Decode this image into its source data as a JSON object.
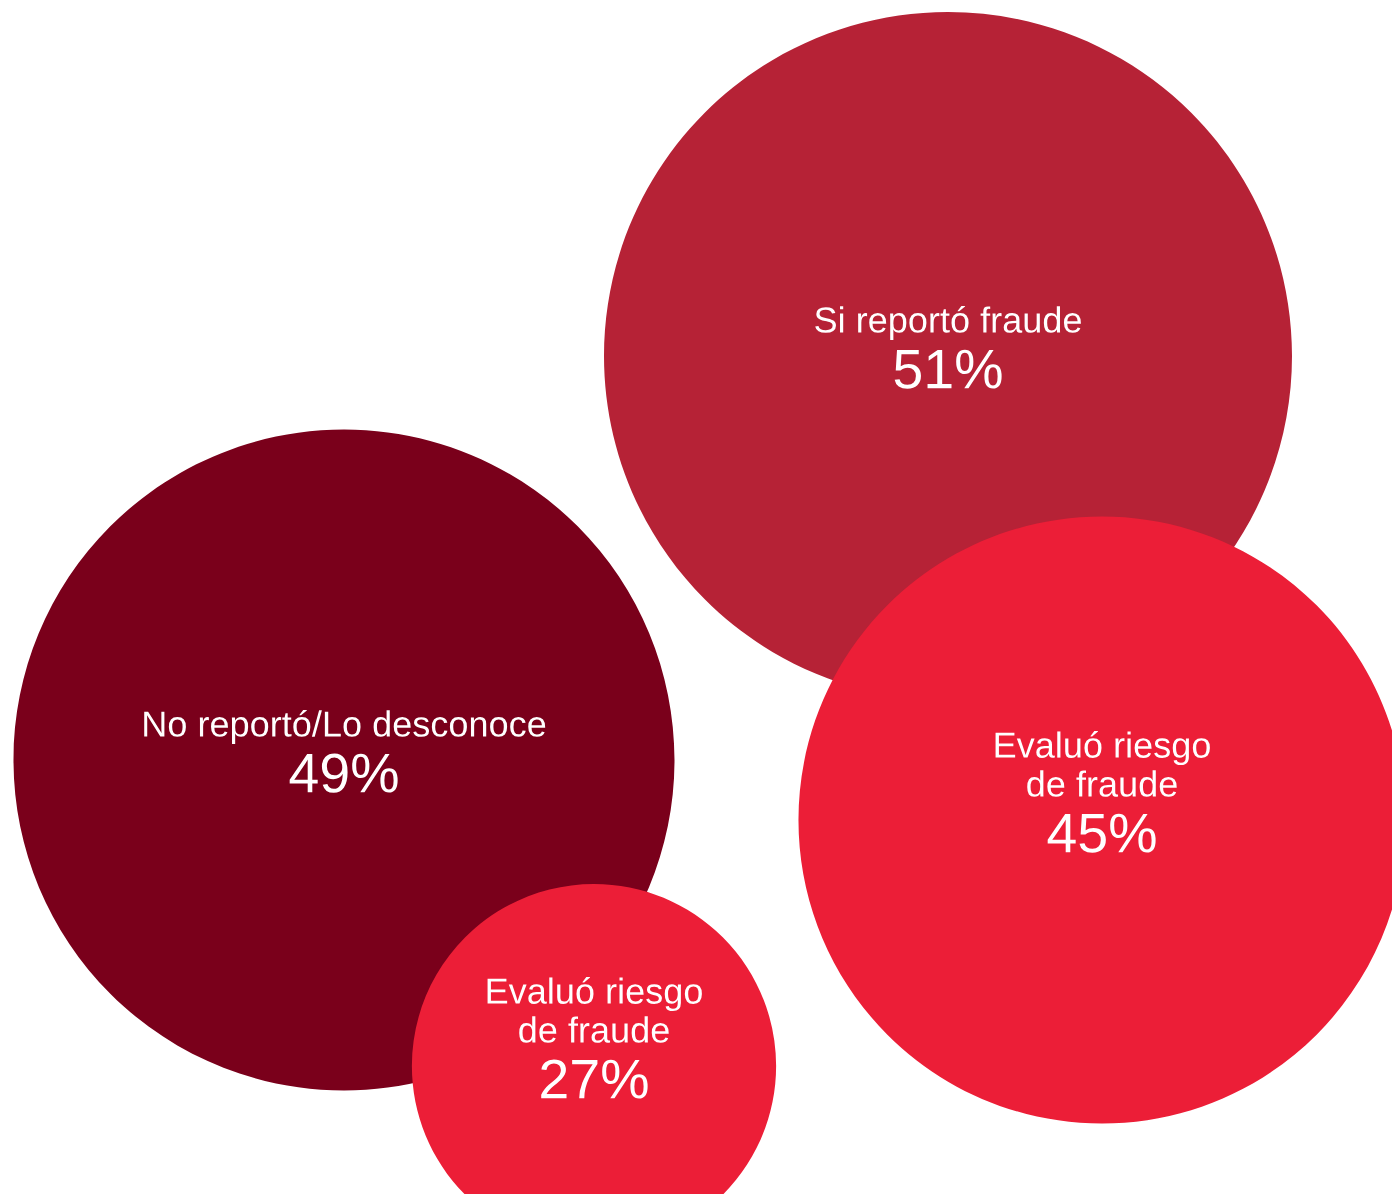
{
  "chart_data": {
    "type": "other",
    "categories": [
      "Si reportó fraude",
      "No reportó/Lo desconoce",
      "Evaluó riesgo\nde fraude",
      "Evaluó riesgo\nde fraude"
    ],
    "values": [
      51,
      49,
      45,
      27
    ],
    "value_labels": [
      "51%",
      "49%",
      "45%",
      "27%"
    ],
    "colors": [
      "#b62236",
      "#7a001b",
      "#ec1e37",
      "#ec1e37"
    ]
  }
}
